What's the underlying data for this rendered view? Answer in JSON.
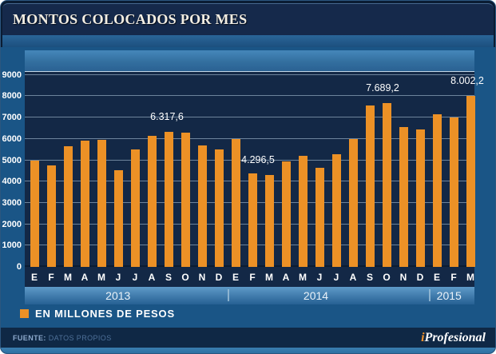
{
  "title": "MONTOS COLOCADOS POR MES",
  "legend": {
    "label": "EN MILLONES DE PESOS",
    "swatch_color": "#EC9126"
  },
  "footer": {
    "source_label": "FUENTE:",
    "source_value": "DATOS PROPIOS",
    "brand_prefix": "i",
    "brand_name": "Profesional"
  },
  "colors": {
    "bar_orange": "#EC9126",
    "frame_blue": "#1A5586",
    "plot_navy": "#132846",
    "title_navy": "#15294B",
    "footer_navy": "#0F2845",
    "gridline": "#8CA3B9"
  },
  "chart_data": {
    "type": "bar",
    "title": "MONTOS COLOCADOS POR MES",
    "ylabel": "millones de pesos",
    "grid": true,
    "legend_position": "bottom-left",
    "categories": [
      "E",
      "F",
      "M",
      "A",
      "M",
      "J",
      "J",
      "A",
      "S",
      "O",
      "N",
      "D",
      "E",
      "F",
      "M",
      "A",
      "M",
      "J",
      "J",
      "A",
      "S",
      "O",
      "N",
      "D",
      "E",
      "F",
      "M"
    ],
    "values": [
      5000,
      4750,
      5650,
      5900,
      5950,
      4550,
      5500,
      6150,
      6317.6,
      6300,
      5700,
      5500,
      6000,
      4400,
      4296.5,
      4950,
      5200,
      4650,
      5300,
      6000,
      7550,
      7689.2,
      6550,
      6450,
      7150,
      7000,
      8002.2
    ],
    "years": [
      {
        "label": "2013",
        "months": 12
      },
      {
        "label": "2014",
        "months": 12
      },
      {
        "label": "2015",
        "months": 3
      }
    ],
    "y_ticks": [
      0,
      1000,
      2000,
      3000,
      4000,
      5000,
      6000,
      7000,
      8000,
      9000
    ],
    "ylim": [
      0,
      9150
    ],
    "annotations": [
      {
        "index": 8,
        "text": "6.317,6",
        "value": 6317.6
      },
      {
        "index": 14,
        "text": "4.296,5",
        "value": 4296.5
      },
      {
        "index": 21,
        "text": "7.689,2",
        "value": 7689.2
      },
      {
        "index": 26,
        "text": "8.002,2",
        "value": 8002.2
      }
    ]
  }
}
